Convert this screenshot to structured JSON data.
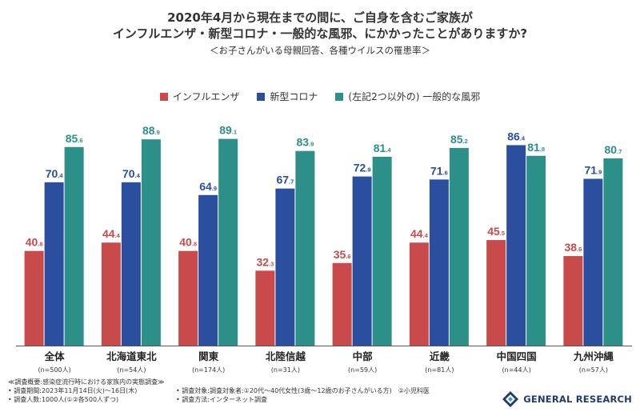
{
  "header": {
    "title_line1": "2020年4月から現在までの間に、ご自身を含むご家族が",
    "title_line2": "インフルエンザ・新型コロナ・一般的な風邪、にかかったことがありますか?",
    "subtitle": "＜お子さんがいる母親回答、各種ウイルスの罹患率＞"
  },
  "colors": {
    "influenza": "#c84a4a",
    "covid": "#2b4e9e",
    "cold": "#2c9088"
  },
  "chart_data": {
    "type": "bar",
    "categories": [
      "全体",
      "北海道東北",
      "関東",
      "北陸信越",
      "中部",
      "近畿",
      "中国四国",
      "九州沖縄"
    ],
    "sample_sizes": [
      "(n=500人)",
      "(n=54人)",
      "(n=174人)",
      "(n=31人)",
      "(n=59人)",
      "(n=81人)",
      "(n=44人)",
      "(n=57人)"
    ],
    "series": [
      {
        "name": "インフルエンザ",
        "values": [
          40.8,
          44.4,
          40.8,
          32.3,
          35.6,
          44.4,
          45.5,
          38.6
        ]
      },
      {
        "name": "新型コロナ",
        "values": [
          70.4,
          70.4,
          64.9,
          67.7,
          72.9,
          71.6,
          86.4,
          71.9
        ]
      },
      {
        "name": "(左記2つ以外の) 一般的な風邪",
        "values": [
          85.6,
          88.9,
          89.1,
          83.9,
          81.4,
          85.2,
          81.8,
          80.7
        ]
      }
    ],
    "ylim": [
      0,
      100
    ],
    "legend_position": "top",
    "grid": false
  },
  "footer": {
    "heading": "≪調査概要:感染症流行時における家族内の実態調査≫",
    "period": "• 調査期間:2023年11月14日(火)〜16日(木)",
    "count": "• 調査人数:1000人(①②各500人ずつ)",
    "target": "• 調査対象:調査対象者:①20代〜40代女性(3歳〜12歳のお子さんがいる方)　②小児科医",
    "method": "• 調査方法:インターネット調査"
  },
  "brand": {
    "name": "GENERAL RESEARCH"
  }
}
